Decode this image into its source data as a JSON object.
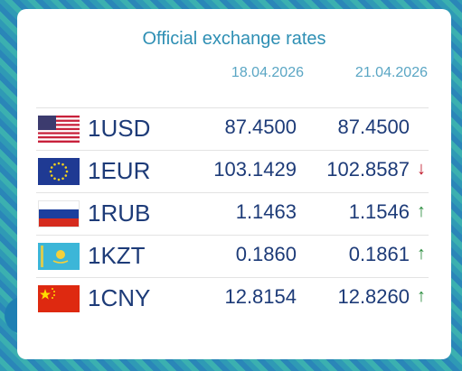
{
  "title": "Official exchange rates",
  "dates": [
    "18.04.2026",
    "21.04.2026"
  ],
  "rates": [
    {
      "currency": "1USD",
      "flag": "us-flag-icon",
      "v1": "87.4500",
      "v2": "87.4500",
      "trend": ""
    },
    {
      "currency": "1EUR",
      "flag": "eu-flag-icon",
      "v1": "103.1429",
      "v2": "102.8587",
      "trend": "↓"
    },
    {
      "currency": "1RUB",
      "flag": "ru-flag-icon",
      "v1": "1.1463",
      "v2": "1.1546",
      "trend": "↑"
    },
    {
      "currency": "1KZT",
      "flag": "kz-flag-icon",
      "v1": "0.1860",
      "v2": "0.1861",
      "trend": "↑"
    },
    {
      "currency": "1CNY",
      "flag": "cn-flag-icon",
      "v1": "12.8154",
      "v2": "12.8260",
      "trend": "↑"
    }
  ],
  "colors": {
    "up": "#2a8c3e",
    "down": "#c0182a",
    "text": "#1d3b78",
    "title": "#2e8fb4"
  }
}
